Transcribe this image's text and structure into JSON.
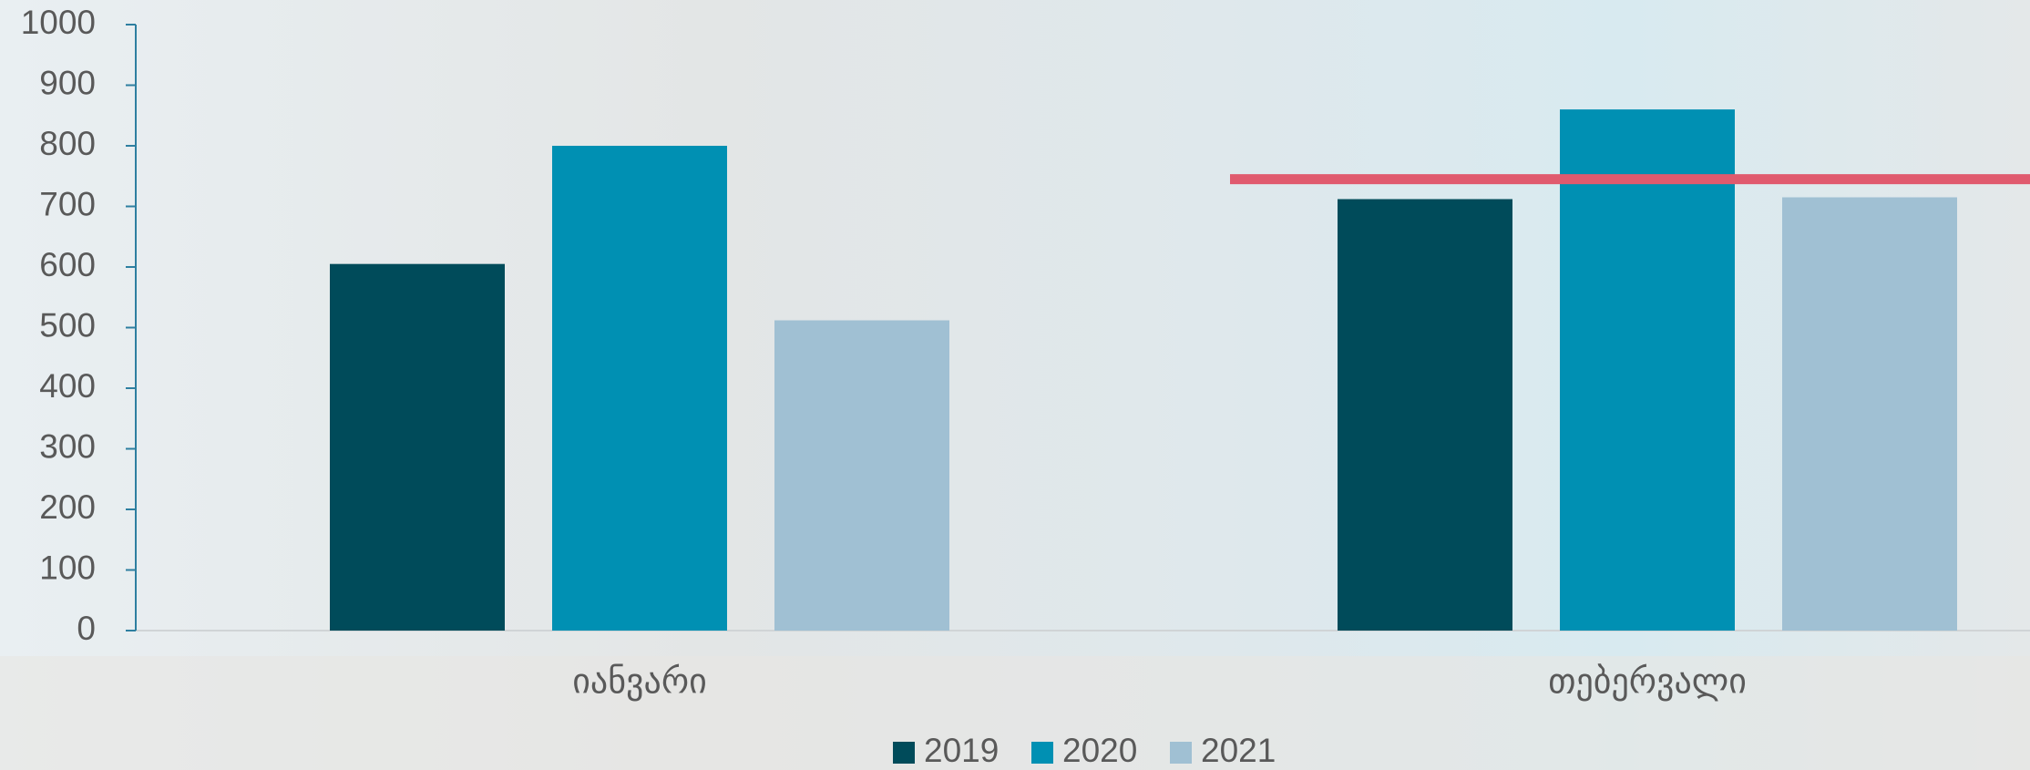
{
  "chart_data": {
    "type": "bar",
    "categories": [
      "იანვარი",
      "თებერვალი"
    ],
    "series": [
      {
        "name": "2019",
        "color": "#004b5a",
        "values": [
          605,
          712
        ]
      },
      {
        "name": "2020",
        "color": "#0090b3",
        "values": [
          800,
          860
        ]
      },
      {
        "name": "2021",
        "color": "#a0c0d3",
        "values": [
          512,
          715
        ]
      }
    ],
    "reference_line": {
      "value": 745,
      "color": "#e05a6e"
    },
    "ylim": [
      0,
      1000
    ],
    "yticks": [
      0,
      100,
      200,
      300,
      400,
      500,
      600,
      700,
      800,
      900,
      1000
    ],
    "legend": "bottom"
  }
}
